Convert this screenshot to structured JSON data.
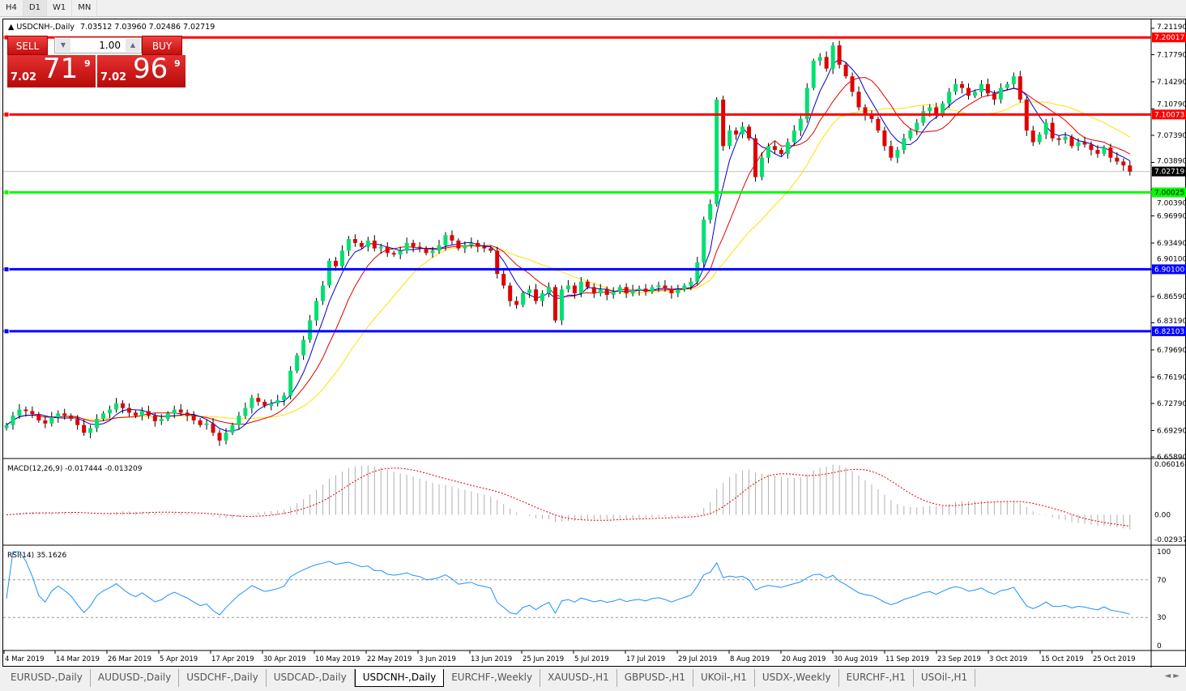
{
  "timeframes": [
    "H4",
    "D1",
    "W1",
    "MN"
  ],
  "active_timeframe": "D1",
  "chart": {
    "symbol_header": "USDCNH-,Daily",
    "ohlc": "7.03512 7.03960 7.02486 7.02719"
  },
  "trade": {
    "sell_label": "SELL",
    "buy_label": "BUY",
    "lot": "1.00",
    "sell_small": "7.02",
    "sell_big": "71",
    "sell_sup": "9",
    "buy_small": "7.02",
    "buy_big": "96",
    "buy_sup": "9"
  },
  "price_axis": {
    "ticks": [
      "7.21190",
      "7.17790",
      "7.14290",
      "7.10790",
      "7.07390",
      "7.03890",
      "7.00390",
      "6.96990",
      "6.93490",
      "6.90100",
      "6.86590",
      "6.83190",
      "6.79690",
      "6.76190",
      "6.72790",
      "6.69290",
      "6.65890"
    ],
    "range": [
      6.6589,
      7.2119
    ],
    "current": "7.02719"
  },
  "levels": [
    {
      "price": "7.20017",
      "color": "#ff0000"
    },
    {
      "price": "7.10073",
      "color": "#ff0000"
    },
    {
      "price": "7.00025",
      "color": "#00ff00"
    },
    {
      "price": "6.90100",
      "color": "#0000ff"
    },
    {
      "price": "6.82103",
      "color": "#0000ff"
    }
  ],
  "colors": {
    "bull": "#00e070",
    "bear": "#e00000",
    "ma_fast": "#0000cc",
    "ma_mid": "#e00000",
    "ma_slow": "#ffe000",
    "macd_signal": "#e00000",
    "rsi": "#1e90ff"
  },
  "closes": [
    6.7,
    6.712,
    6.72,
    6.718,
    6.714,
    6.706,
    6.702,
    6.71,
    6.715,
    6.712,
    6.708,
    6.7,
    6.69,
    6.696,
    6.708,
    6.715,
    6.72,
    6.728,
    6.722,
    6.716,
    6.712,
    6.718,
    6.712,
    6.705,
    6.708,
    6.715,
    6.72,
    6.716,
    6.712,
    6.706,
    6.7,
    6.702,
    6.69,
    6.68,
    6.69,
    6.7,
    6.712,
    6.722,
    6.735,
    6.73,
    6.725,
    6.728,
    6.732,
    6.738,
    6.77,
    6.79,
    6.81,
    6.835,
    6.86,
    6.88,
    6.912,
    6.905,
    6.925,
    6.94,
    6.935,
    6.93,
    6.938,
    6.928,
    6.93,
    6.922,
    6.92,
    6.925,
    6.935,
    6.93,
    6.928,
    6.922,
    6.925,
    6.932,
    6.945,
    6.938,
    6.928,
    6.932,
    6.935,
    6.93,
    6.928,
    6.925,
    6.895,
    6.88,
    6.86,
    6.855,
    6.87,
    6.875,
    6.86,
    6.87,
    6.878,
    6.835,
    6.875,
    6.88,
    6.87,
    6.885,
    6.878,
    6.87,
    6.875,
    6.868,
    6.872,
    6.878,
    6.87,
    6.874,
    6.876,
    6.872,
    6.878,
    6.88,
    6.876,
    6.87,
    6.875,
    6.88,
    6.885,
    6.91,
    6.965,
    6.985,
    7.12,
    7.06,
    7.08,
    7.075,
    7.085,
    7.07,
    7.02,
    7.045,
    7.06,
    7.055,
    7.05,
    7.065,
    7.08,
    7.095,
    7.135,
    7.17,
    7.175,
    7.16,
    7.19,
    7.165,
    7.15,
    7.13,
    7.11,
    7.1,
    7.095,
    7.08,
    7.06,
    7.045,
    7.055,
    7.07,
    7.08,
    7.09,
    7.105,
    7.11,
    7.1,
    7.115,
    7.13,
    7.14,
    7.135,
    7.125,
    7.13,
    7.14,
    7.128,
    7.12,
    7.135,
    7.14,
    7.15,
    7.12,
    7.08,
    7.065,
    7.075,
    7.09,
    7.07,
    7.068,
    7.072,
    7.06,
    7.065,
    7.062,
    7.055,
    7.05,
    7.058,
    7.045,
    7.04,
    7.035,
    7.027
  ],
  "macd": {
    "label": "MACD(12,26,9) -0.017444 -0.013209",
    "ticks": [
      "0.060161",
      "0.00",
      "-0.029378"
    ],
    "range": [
      -0.029378,
      0.060161
    ]
  },
  "rsi": {
    "label": "RSI(14) 35.1626",
    "ticks": [
      "100",
      "70",
      "30",
      "0"
    ]
  },
  "dates": [
    "4 Mar 2019",
    "14 Mar 2019",
    "26 Mar 2019",
    "5 Apr 2019",
    "17 Apr 2019",
    "30 Apr 2019",
    "10 May 2019",
    "22 May 2019",
    "3 Jun 2019",
    "13 Jun 2019",
    "25 Jun 2019",
    "5 Jul 2019",
    "17 Jul 2019",
    "29 Jul 2019",
    "8 Aug 2019",
    "20 Aug 2019",
    "30 Aug 2019",
    "11 Sep 2019",
    "23 Sep 2019",
    "3 Oct 2019",
    "15 Oct 2019",
    "25 Oct 2019"
  ],
  "tabs": [
    "EURUSD-,Daily",
    "AUDUSD-,Daily",
    "USDCHF-,Daily",
    "USDCAD-,Daily",
    "USDCNH-,Daily",
    "EURCHF-,Weekly",
    "XAUUSD-,H1",
    "GBPUSD-,H1",
    "UKOil-,H1",
    "USDX-,Weekly",
    "EURCHF-,H1",
    "USOil-,H1"
  ],
  "active_tab": "USDCNH-,Daily"
}
